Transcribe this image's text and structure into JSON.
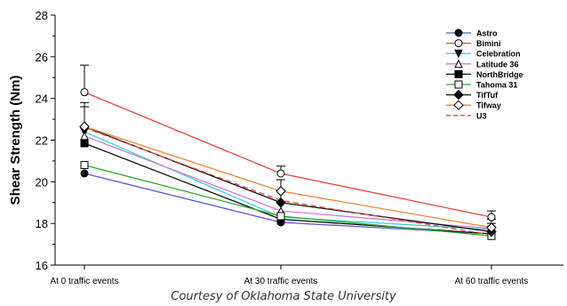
{
  "chart_data": {
    "type": "line",
    "ylabel": "Shear Strength (Nm)",
    "xlabel": "",
    "ylim": [
      16,
      28
    ],
    "yticks": [
      "16",
      "18",
      "20",
      "22",
      "24",
      "26",
      "28"
    ],
    "categories": [
      "At 0 traffic events",
      "At 30 traffic events",
      "At 60 traffic events"
    ],
    "grid": false,
    "legend_position": "top-right",
    "series": [
      {
        "name": "Astro",
        "values": [
          20.4,
          18.05,
          17.5
        ],
        "color": "#5a5ad8",
        "marker": "filled-circle",
        "dash": false
      },
      {
        "name": "Bimini",
        "values": [
          24.3,
          20.4,
          18.3
        ],
        "color": "#e8463c",
        "marker": "open-circle",
        "dash": false
      },
      {
        "name": "Celebration",
        "values": [
          22.4,
          18.3,
          17.7
        ],
        "color": "#39d3e0",
        "marker": "filled-triangle-down",
        "dash": false
      },
      {
        "name": "Latitude 36",
        "values": [
          22.2,
          18.6,
          17.75
        ],
        "color": "#d07ad8",
        "marker": "open-triangle-up",
        "dash": false
      },
      {
        "name": "NorthBridge",
        "values": [
          21.85,
          18.2,
          17.5
        ],
        "color": "#111111",
        "marker": "filled-square",
        "dash": false
      },
      {
        "name": "Tahoma 31",
        "values": [
          20.8,
          18.35,
          17.4
        ],
        "color": "#2eaa2e",
        "marker": "open-square",
        "dash": false
      },
      {
        "name": "TifTuf",
        "values": [
          22.65,
          19.0,
          17.6
        ],
        "color": "#111111",
        "marker": "filled-diamond",
        "dash": false
      },
      {
        "name": "Tifway",
        "values": [
          22.65,
          19.55,
          17.8
        ],
        "color": "#f0823a",
        "marker": "open-diamond",
        "dash": false
      },
      {
        "name": "U3",
        "values": [
          22.6,
          19.1,
          17.45
        ],
        "color": "#e8463c",
        "marker": "none",
        "dash": true
      }
    ],
    "error_bars": [
      {
        "series": "Bimini",
        "upper": [
          25.6,
          20.75,
          18.6
        ]
      },
      {
        "series": "TifTuf",
        "upper": [
          23.8,
          19.6,
          18.0
        ]
      },
      {
        "series": "Tifway",
        "upper": [
          23.6,
          20.1,
          18.2
        ]
      }
    ]
  },
  "caption": "Courtesy of Oklahoma State University"
}
